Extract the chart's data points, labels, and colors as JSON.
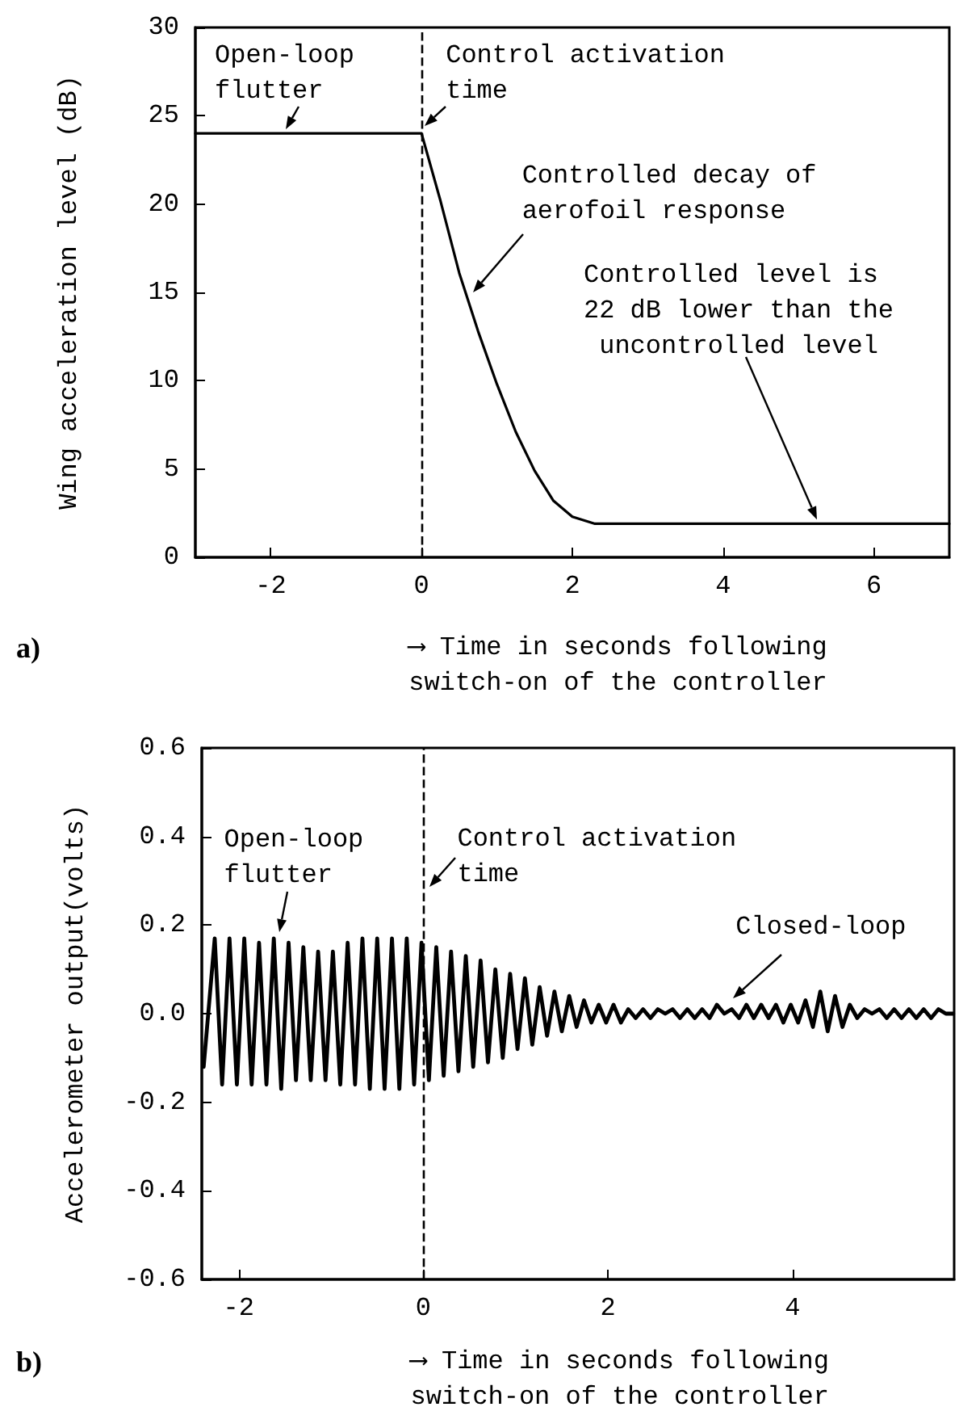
{
  "chart_data": [
    {
      "type": "line",
      "xlabel": "⟶ Time in seconds following switch-on of the controller",
      "ylabel": "Wing acceleration level (dB)",
      "xlim": [
        -3,
        7
      ],
      "xticks": [
        -2,
        0,
        2,
        4,
        6
      ],
      "ylim": [
        0,
        30
      ],
      "yticks": [
        0,
        5,
        10,
        15,
        20,
        25,
        30
      ],
      "grid": false,
      "marker": "none",
      "line_style": "solid",
      "series": [
        {
          "color": "#000000",
          "x": [
            -3,
            0,
            0.25,
            0.5,
            0.75,
            1.0,
            1.25,
            1.5,
            1.75,
            2.0,
            2.3,
            7
          ],
          "values": [
            24,
            24,
            20.2,
            16.1,
            12.8,
            9.8,
            7.1,
            4.9,
            3.2,
            2.3,
            1.9,
            1.9
          ]
        }
      ],
      "ref_lines": [
        {
          "axis": "x",
          "value": 0,
          "color": "#000000",
          "line_style": "dashed"
        }
      ],
      "annotations": [
        {
          "text": "Open-loop flutter",
          "x": -1.8,
          "y": 24
        },
        {
          "text": "Control activation time",
          "x": 0,
          "y": 24
        },
        {
          "text": "Controlled decay of aerofoil response",
          "x": 0.69,
          "y": 15
        },
        "Controlled level is 22 dB lower than the uncontrolled level",
        "a)"
      ]
    },
    {
      "type": "line",
      "xlabel": "⟶ Time in seconds following switch-on of the controller",
      "ylabel": "Accelerometer output(volts)",
      "xlim": [
        -2.4,
        5.75
      ],
      "xticks": [
        -2,
        0,
        2,
        4
      ],
      "ylim": [
        -0.6,
        0.6
      ],
      "yticks": [
        -0.6,
        -0.4,
        -0.2,
        {
          "value": 0,
          "label": "0.0"
        },
        0.2,
        0.4,
        0.6
      ],
      "grid": false,
      "marker": "none",
      "line_style": "solid",
      "series": [
        {
          "color": "#000000",
          "x": [
            -2.38,
            -2.26,
            -2.18,
            -2.1,
            -2.02,
            -1.94,
            -1.86,
            -1.78,
            -1.7,
            -1.62,
            -1.54,
            -1.46,
            -1.38,
            -1.3,
            -1.22,
            -1.14,
            -1.06,
            -0.98,
            -0.9,
            -0.82,
            -0.74,
            -0.66,
            -0.58,
            -0.5,
            -0.42,
            -0.34,
            -0.26,
            -0.18,
            -0.1,
            -0.02,
            0.06,
            0.14,
            0.22,
            0.3,
            0.38,
            0.46,
            0.54,
            0.62,
            0.7,
            0.78,
            0.86,
            0.94,
            1.02,
            1.1,
            1.18,
            1.26,
            1.34,
            1.42,
            1.5,
            1.58,
            1.66,
            1.74,
            1.82,
            1.9,
            1.98,
            2.06,
            2.14,
            2.22,
            2.3,
            2.38,
            2.46,
            2.54,
            2.62,
            2.7,
            2.78,
            2.86,
            2.94,
            3.02,
            3.1,
            3.18,
            3.26,
            3.34,
            3.42,
            3.5,
            3.58,
            3.66,
            3.74,
            3.82,
            3.9,
            3.98,
            4.06,
            4.14,
            4.22,
            4.3,
            4.38,
            4.46,
            4.54,
            4.62,
            4.7,
            4.78,
            4.86,
            4.94,
            5.02,
            5.1,
            5.18,
            5.26,
            5.34,
            5.42,
            5.5,
            5.58,
            5.66,
            5.74
          ],
          "values": [
            -0.12,
            0.17,
            -0.16,
            0.17,
            -0.16,
            0.17,
            -0.16,
            0.16,
            -0.16,
            0.17,
            -0.17,
            0.16,
            -0.15,
            0.15,
            -0.15,
            0.14,
            -0.15,
            0.14,
            -0.16,
            0.16,
            -0.16,
            0.17,
            -0.17,
            0.17,
            -0.17,
            0.17,
            -0.17,
            0.17,
            -0.16,
            0.16,
            -0.15,
            0.15,
            -0.14,
            0.14,
            -0.13,
            0.13,
            -0.12,
            0.12,
            -0.11,
            0.1,
            -0.1,
            0.09,
            -0.08,
            0.08,
            -0.07,
            0.06,
            -0.05,
            0.05,
            -0.04,
            0.04,
            -0.03,
            0.03,
            -0.02,
            0.02,
            -0.02,
            0.02,
            -0.02,
            0.01,
            -0.01,
            0.01,
            -0.01,
            0.01,
            0.0,
            0.01,
            -0.01,
            0.01,
            -0.01,
            0.01,
            -0.01,
            0.02,
            0.0,
            0.01,
            -0.01,
            0.02,
            -0.01,
            0.02,
            -0.01,
            0.02,
            -0.02,
            0.02,
            -0.02,
            0.03,
            -0.03,
            0.05,
            -0.04,
            0.04,
            -0.03,
            0.02,
            -0.01,
            0.01,
            0.0,
            0.01,
            -0.01,
            0.01,
            -0.01,
            0.01,
            -0.01,
            0.01,
            -0.01,
            0.01,
            0.0,
            0.0
          ]
        }
      ],
      "ref_lines": [
        {
          "axis": "x",
          "value": 0,
          "color": "#000000",
          "line_style": "dashed"
        }
      ],
      "annotations": [
        {
          "text": "Open-loop flutter",
          "x": -1.6,
          "y": 0.17
        },
        {
          "text": "Control activation time",
          "x": 0,
          "y": 0.28
        },
        {
          "text": "Closed-loop",
          "x": 3.4,
          "y": 0.01
        },
        "b)"
      ]
    }
  ]
}
